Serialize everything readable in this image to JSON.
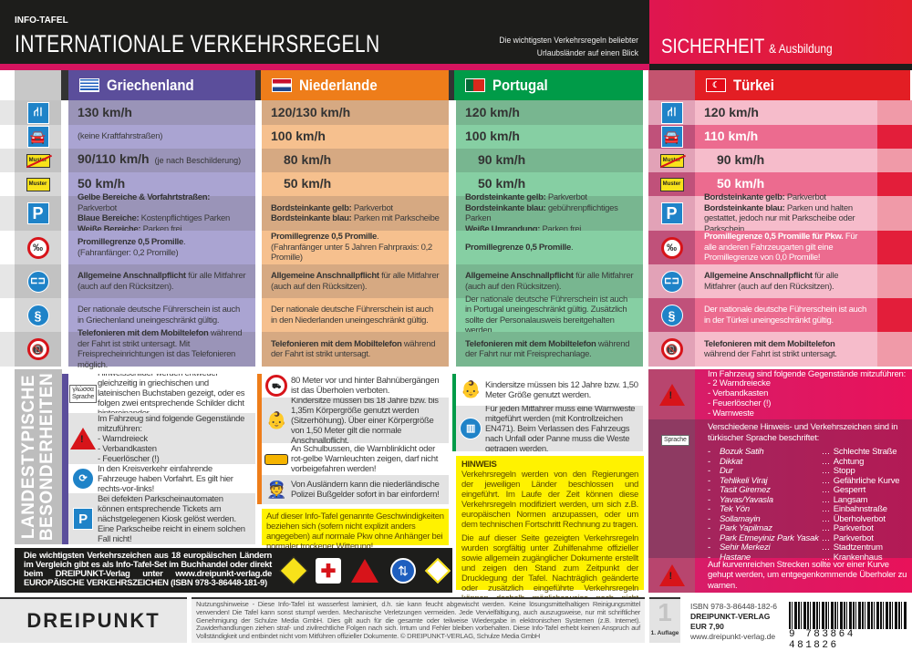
{
  "header": {
    "kicker": "INFO-TAFEL",
    "title": "INTERNATIONALE VERKEHRSREGELN",
    "subtitle_1": "Die wichtigsten Verkehrsregeln beliebter",
    "subtitle_2": "Urlaubsländer auf einen Blick",
    "brand": "SICHERHEIT",
    "brand_small": "& Ausbildung"
  },
  "colors": {
    "griechenland": "#5b4e9b",
    "niederlande": "#ee7d1a",
    "portugal": "#009b48",
    "tuerkei": "#e31e24"
  },
  "row_icons": [
    "motorway-icon",
    "expressway-car-icon",
    "town-exit-sign-icon",
    "town-entry-sign-icon",
    "parking-icon",
    "alcohol-limit-icon",
    "seatbelt-icon",
    "license-paragraph-icon",
    "no-mobile-phone-icon"
  ],
  "countries": [
    {
      "name": "Griechenland",
      "cells": [
        {
          "big": "130 km/h"
        },
        {
          "lines": [
            [
              "",
              "(keine Kraftfahrstraßen)"
            ]
          ]
        },
        {
          "big": "90/110 km/h",
          "note": "(je nach Beschilderung)"
        },
        {
          "big": "50 km/h"
        },
        {
          "lines": [
            [
              "Gelbe Bereiche & Vorfahrtstraßen:",
              " Parkverbot"
            ],
            [
              "Blaue Bereiche:",
              " Kostenpflichtiges Parken"
            ],
            [
              "Weiße Bereiche:",
              " Parken frei"
            ]
          ]
        },
        {
          "lines": [
            [
              "Promillegrenze 0,5 Promille",
              "."
            ],
            [
              "",
              "(Fahranfänger: 0,2 Promille)"
            ]
          ]
        },
        {
          "lines": [
            [
              "Allgemeine Anschnallpflicht",
              " für alle Mitfahrer (auch auf den Rücksitzen)."
            ]
          ]
        },
        {
          "lines": [
            [
              "",
              "Der nationale deutsche Führerschein ist auch in Griechenland uneingeschränkt gültig."
            ]
          ]
        },
        {
          "lines": [
            [
              "Telefonieren mit dem Mobiltelefon",
              " während der Fahrt ist strikt untersagt. Mit Freisprecheinrichtungen ist das Telefonieren möglich."
            ]
          ]
        }
      ]
    },
    {
      "name": "Niederlande",
      "cells": [
        {
          "big": "120/130 km/h"
        },
        {
          "big": "100 km/h"
        },
        {
          "big": "80 km/h"
        },
        {
          "big": "50 km/h"
        },
        {
          "lines": [
            [
              "Bordsteinkante gelb:",
              " Parkverbot"
            ],
            [
              "Bordsteinkante blau:",
              " Parken mit Parkscheibe"
            ]
          ]
        },
        {
          "lines": [
            [
              "Promillegrenze 0,5 Promille",
              "."
            ],
            [
              "",
              "(Fahranfänger unter 5 Jahren Fahrpraxis: 0,2 Promille)"
            ]
          ]
        },
        {
          "lines": [
            [
              "Allgemeine Anschnallpflicht",
              " für alle Mitfahrer (auch auf den Rücksitzen)."
            ]
          ]
        },
        {
          "lines": [
            [
              "",
              "Der nationale deutsche Führerschein ist auch in den Niederlanden uneingeschränkt gültig."
            ]
          ]
        },
        {
          "lines": [
            [
              "Telefonieren mit dem Mobiltelefon",
              " während der Fahrt ist strikt untersagt."
            ]
          ]
        }
      ]
    },
    {
      "name": "Portugal",
      "cells": [
        {
          "big": "120 km/h"
        },
        {
          "big": "100 km/h"
        },
        {
          "big": "90 km/h"
        },
        {
          "big": "50 km/h"
        },
        {
          "lines": [
            [
              "Bordsteinkante gelb:",
              " Parkverbot"
            ],
            [
              "Bordsteinkante blau:",
              " gebührenpflichtiges Parken"
            ],
            [
              "Weiße Umrandung:",
              " Parken frei"
            ]
          ]
        },
        {
          "lines": [
            [
              "Promillegrenze 0,5 Promille",
              "."
            ]
          ]
        },
        {
          "lines": [
            [
              "Allgemeine Anschnallpflicht",
              " für alle Mitfahrer (auch auf den Rücksitzen)."
            ]
          ]
        },
        {
          "lines": [
            [
              "",
              "Der nationale deutsche Führerschein ist auch in Portugal uneingeschränkt gültig. Zusätzlich sollte der Personalausweis bereitgehalten werden."
            ]
          ]
        },
        {
          "lines": [
            [
              "Telefonieren mit dem Mobiltelefon",
              " während der Fahrt nur mit Freisprechanlage."
            ]
          ]
        }
      ]
    },
    {
      "name": "Türkei",
      "cells": [
        {
          "big": "120 km/h"
        },
        {
          "big": "110 km/h"
        },
        {
          "big": "90 km/h"
        },
        {
          "big": "50 km/h"
        },
        {
          "lines": [
            [
              "Bordsteinkante gelb:",
              " Parkverbot"
            ],
            [
              "Bordsteinkante blau:",
              " Parken und halten gestattet, jedoch nur mit Parkscheibe oder Parkschein"
            ]
          ]
        },
        {
          "lines": [
            [
              "Promillegrenze 0,5 Promille für Pkw.",
              " Für alle anderen Fahrzeugarten gilt eine Promillegrenze von 0,0 Promille!"
            ]
          ]
        },
        {
          "lines": [
            [
              "Allgemeine Anschnallpflicht",
              " für alle Mitfahrer (auch auf den Rücksitzen)."
            ]
          ]
        },
        {
          "lines": [
            [
              "",
              "Der nationale deutsche Führerschein ist auch in der Türkei uneingeschränkt gültig."
            ]
          ]
        },
        {
          "lines": [
            [
              "Telefonieren mit dem Mobiltelefon",
              " während der Fahrt ist strikt untersagt."
            ]
          ]
        }
      ]
    }
  ],
  "special": {
    "section_title_1": "LANDESTYPISCHE",
    "section_title_2": "BESONDERHEITEN",
    "sprache_label": "Sprache",
    "greek_word": "γλώσσα",
    "griechenland": [
      "Hinweisschilder werden entweder gleichzeitig in griechischen und lateinischen Buchstaben gezeigt, oder es folgen zwei entsprechende Schilder dicht hintereinander.",
      "Im Fahrzeug sind folgende Gegenstände mitzuführen:\n- Warndreieck\n- Verbandkasten\n- Feuerlöscher (!)",
      "In den Kreisverkehr einfahrende Fahrzeuge haben Vorfahrt. Es gilt hier rechts-vor-links!",
      "Bei defekten Parkscheinautomaten können entsprechende Tickets am nächstgelegenen Kiosk gelöst werden. Eine Parkscheibe reicht in einem solchen Fall nicht!"
    ],
    "niederlande": [
      "80 Meter vor und hinter Bahnübergängen ist das Überholen verboten.",
      "Kindersitze müssen bis 18 Jahre bzw. bis 1,35m Körpergröße genutzt werden (Sitzerhöhung). Über einer Körpergröße von 1,50 Meter gilt die normale Anschnallpflicht.",
      "An Schulbussen, die Warnblinklicht oder rot-gelbe Warnleuchten zeigen, darf nicht vorbeigefahren werden!",
      "Von Ausländern kann die niederländische Polizei Bußgelder sofort in bar einfordern!"
    ],
    "speed_note": "Auf dieser Info-Tafel genannte Geschwindigkeiten beziehen sich (sofern nicht explizit anders angegeben) auf normale Pkw ohne Anhänger bei normaler trockener Witterung!",
    "portugal": [
      "Kindersitze müssen bis 12 Jahre bzw. 1,50 Meter Größe genutzt werden.",
      "Für jeden Mitfahrer muss eine Warnweste mitgeführt werden (mit Kontrollzeichen EN471). Beim Verlassen des Fahrzeugs nach Unfall oder Panne muss die Weste getragen werden."
    ],
    "hinweis": {
      "title": "HINWEIS",
      "p1": "Verkehrsregeln werden von den Regierungen der jeweiligen Länder beschlossen und eingeführt. Im Laufe der Zeit können diese Verkehrsregeln modifiziert werden, um sich z.B. europäischen Normen anzupassen, oder um dem technischen Fortschritt Rechnung zu tragen.",
      "p2": "Die auf dieser Seite gezeigten Verkehrsregeln wurden sorgfältig unter Zuhilfenahme offizieller sowie allgemein zugänglicher Dokumente erstellt und zeigen den Stand zum Zeitpunkt der Drucklegung der Tafel. Nachträglich geänderte oder zusätzlich eingeführte Verkehrsregeln können deshalb möglicherweise noch nicht enthalten sein. Bitte informieren Sie sich zusätzlich kurzfristig auch aus anderen Quellen."
    },
    "tuerkei": {
      "equipment": "Im Fahrzeug sind folgende Gegenstände mitzuführen:\n- 2 Warndreiecke\n- Verbandkasten\n- Feuerlöscher (!)\n- Warnweste",
      "language_intro": "Verschiedene Hinweis- und Verkehrszeichen sind in türkischer Sprache beschriftet:",
      "dictionary": [
        [
          "Bozuk Satih",
          "Schlechte Straße"
        ],
        [
          "Dikkat",
          "Achtung"
        ],
        [
          "Dur",
          "Stopp"
        ],
        [
          "Tehlikeli Viraj",
          "Gefährliche Kurve"
        ],
        [
          "Tasit Giremez",
          "Gesperrt"
        ],
        [
          "Yavas/Yavasla",
          "Langsam"
        ],
        [
          "Tek Yön",
          "Einbahnstraße"
        ],
        [
          "Sollamayin",
          "Überholverbot"
        ],
        [
          "Park Yapilmaz",
          "Parkverbot"
        ],
        [
          "Park Etmeyiniz Park Yasak",
          "Parkverbot"
        ],
        [
          "Sehir Merkezi",
          "Stadtzentrum"
        ],
        [
          "Hastane",
          "Krankenhaus"
        ]
      ],
      "curves": "Auf kurvenreichen Strecken sollte vor einer Kurve gehupt werden, um entgegenkommende Überholer zu warnen."
    }
  },
  "banner": {
    "text": "Die wichtigsten Verkehrszeichen aus 18 europäischen Ländern im Vergleich gibt es als Info-Tafel-Set im Buchhandel oder direkt beim DREIPUNKT-Verlag unter www.dreipunkt-verlag.de EUROPÄISCHE VERKEHRSZEICHEN (ISBN 978-3-86448-181-9)"
  },
  "footer": {
    "logo": "DREIPUNKT",
    "notice": "Nutzungshinweise - Diese Info-Tafel ist wasserfest laminiert, d.h. sie kann feucht abgewischt werden. Keine lösungsmittelhaltigen Reinigungsmittel verwenden! Die Tafel kann sonst stumpf werden. Mechanische Verletzungen vermeiden. Jede Vervielfältigung, auch auszugsweise, nur mit schriftlicher Genehmigung der Schulze Media GmbH. Dies gilt auch für die gesamte oder teilweise Wiedergabe in elektronischen Systemen (z.B. Internet). Zuwiderhandlungen ziehen straf- und zivilrechtliche Folgen nach sich. Irrtum und Fehler bleiben vorbehalten. Diese Info-Tafel erhebt keinen Anspruch auf Vollständigkeit und entbindet nicht vom Mitführen offizieller Dokumente. © DREIPUNKT-VERLAG, Schulze Media GmbH",
    "edition_number": "1",
    "edition": "1. Auflage",
    "isbn": "ISBN  978-3-86448-182-6",
    "publisher": "DREIPUNKT-VERLAG",
    "price": "EUR 7,90",
    "website": "www.dreipunkt-verlag.de",
    "barcode_digits": "9 783864 481826"
  }
}
